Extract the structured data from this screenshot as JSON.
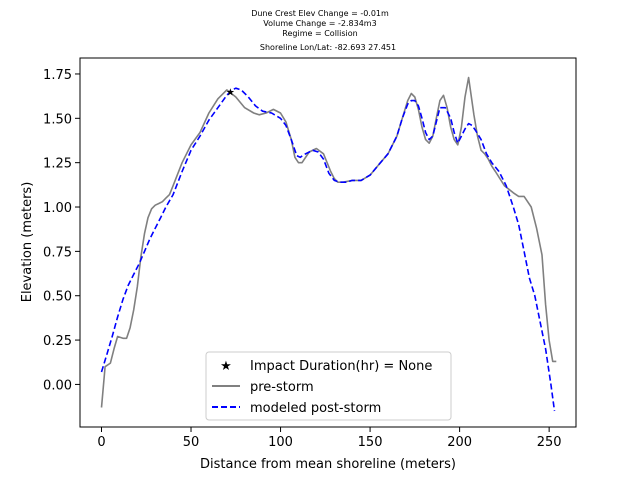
{
  "chart_data": {
    "type": "line",
    "title_lines": [
      "Dune Crest Elev Change = -0.01m",
      "Volume Change = -2.834m3",
      "Regime = Collision",
      "Shoreline Lon/Lat: -82.693 27.451"
    ],
    "xlabel": "Distance from mean shoreline (meters)",
    "ylabel": "Elevation (meters)",
    "xlim": [
      -12,
      265
    ],
    "ylim": [
      -0.24,
      1.84
    ],
    "xticks": [
      0,
      50,
      100,
      150,
      200,
      250
    ],
    "yticks": [
      0.0,
      0.25,
      0.5,
      0.75,
      1.0,
      1.25,
      1.5,
      1.75
    ],
    "xtick_labels": [
      "0",
      "50",
      "100",
      "150",
      "200",
      "250"
    ],
    "ytick_labels": [
      "0.00",
      "0.25",
      "0.50",
      "0.75",
      "1.00",
      "1.25",
      "1.50",
      "1.75"
    ],
    "grid": false,
    "legend_position": "lower center",
    "colors": {
      "pre": "#808080",
      "post": "#0000ff",
      "marker": "#ff0000"
    },
    "marker": {
      "label": "Impact Duration(hr) = None",
      "x": 72,
      "y": 1.65
    },
    "series": [
      {
        "name": "pre-storm",
        "style": "solid",
        "x": [
          0,
          2,
          5,
          7,
          9,
          12,
          14,
          16,
          18,
          20,
          22,
          24,
          26,
          28,
          30,
          32,
          34,
          36,
          38,
          40,
          45,
          50,
          55,
          60,
          65,
          70,
          75,
          80,
          85,
          88,
          92,
          96,
          100,
          103,
          106,
          108,
          110,
          112,
          116,
          120,
          124,
          128,
          130,
          132,
          135,
          140,
          145,
          150,
          155,
          160,
          165,
          168,
          171,
          173,
          175,
          177,
          179,
          181,
          183,
          185,
          187,
          189,
          191,
          193,
          195,
          197,
          199,
          201,
          203,
          205,
          208,
          210,
          212,
          214,
          216,
          218,
          220,
          225,
          230,
          233,
          236,
          240,
          243,
          246,
          248,
          250,
          252,
          254
        ],
        "y": [
          -0.13,
          0.1,
          0.12,
          0.2,
          0.27,
          0.26,
          0.26,
          0.32,
          0.42,
          0.55,
          0.72,
          0.85,
          0.94,
          0.99,
          1.01,
          1.02,
          1.03,
          1.05,
          1.07,
          1.12,
          1.25,
          1.35,
          1.42,
          1.53,
          1.61,
          1.66,
          1.62,
          1.56,
          1.53,
          1.52,
          1.53,
          1.55,
          1.53,
          1.48,
          1.38,
          1.28,
          1.25,
          1.25,
          1.31,
          1.33,
          1.3,
          1.2,
          1.16,
          1.14,
          1.14,
          1.15,
          1.15,
          1.18,
          1.24,
          1.3,
          1.4,
          1.5,
          1.6,
          1.64,
          1.62,
          1.55,
          1.45,
          1.38,
          1.36,
          1.4,
          1.5,
          1.6,
          1.63,
          1.56,
          1.45,
          1.38,
          1.35,
          1.45,
          1.62,
          1.73,
          1.52,
          1.4,
          1.32,
          1.3,
          1.27,
          1.23,
          1.2,
          1.12,
          1.08,
          1.06,
          1.06,
          1.0,
          0.88,
          0.73,
          0.45,
          0.25,
          0.13,
          0.13
        ]
      },
      {
        "name": "modeled post-storm",
        "style": "dashed",
        "x": [
          0,
          3,
          6,
          9,
          12,
          15,
          18,
          21,
          24,
          27,
          30,
          33,
          36,
          40,
          45,
          50,
          55,
          60,
          65,
          70,
          73,
          75,
          78,
          82,
          86,
          90,
          95,
          100,
          103,
          106,
          109,
          111,
          114,
          118,
          121,
          124,
          127,
          130,
          133,
          137,
          140,
          145,
          150,
          155,
          160,
          165,
          168,
          171,
          173,
          175,
          177,
          179,
          181,
          183,
          185,
          187,
          189,
          192,
          195,
          197,
          199,
          201,
          203,
          205,
          207,
          209,
          212,
          215,
          218,
          222,
          226,
          230,
          233,
          236,
          239,
          242,
          245,
          248,
          251,
          253
        ],
        "y": [
          0.07,
          0.17,
          0.27,
          0.38,
          0.48,
          0.56,
          0.62,
          0.68,
          0.75,
          0.82,
          0.88,
          0.94,
          1.0,
          1.07,
          1.2,
          1.32,
          1.4,
          1.49,
          1.56,
          1.63,
          1.66,
          1.67,
          1.66,
          1.62,
          1.57,
          1.54,
          1.53,
          1.5,
          1.46,
          1.38,
          1.29,
          1.28,
          1.3,
          1.32,
          1.31,
          1.27,
          1.19,
          1.15,
          1.14,
          1.14,
          1.15,
          1.15,
          1.18,
          1.24,
          1.3,
          1.4,
          1.5,
          1.58,
          1.6,
          1.6,
          1.57,
          1.5,
          1.42,
          1.38,
          1.4,
          1.48,
          1.56,
          1.56,
          1.5,
          1.42,
          1.36,
          1.4,
          1.44,
          1.47,
          1.46,
          1.43,
          1.38,
          1.3,
          1.25,
          1.2,
          1.12,
          1.0,
          0.9,
          0.75,
          0.6,
          0.5,
          0.35,
          0.2,
          0.0,
          -0.15
        ]
      }
    ]
  }
}
